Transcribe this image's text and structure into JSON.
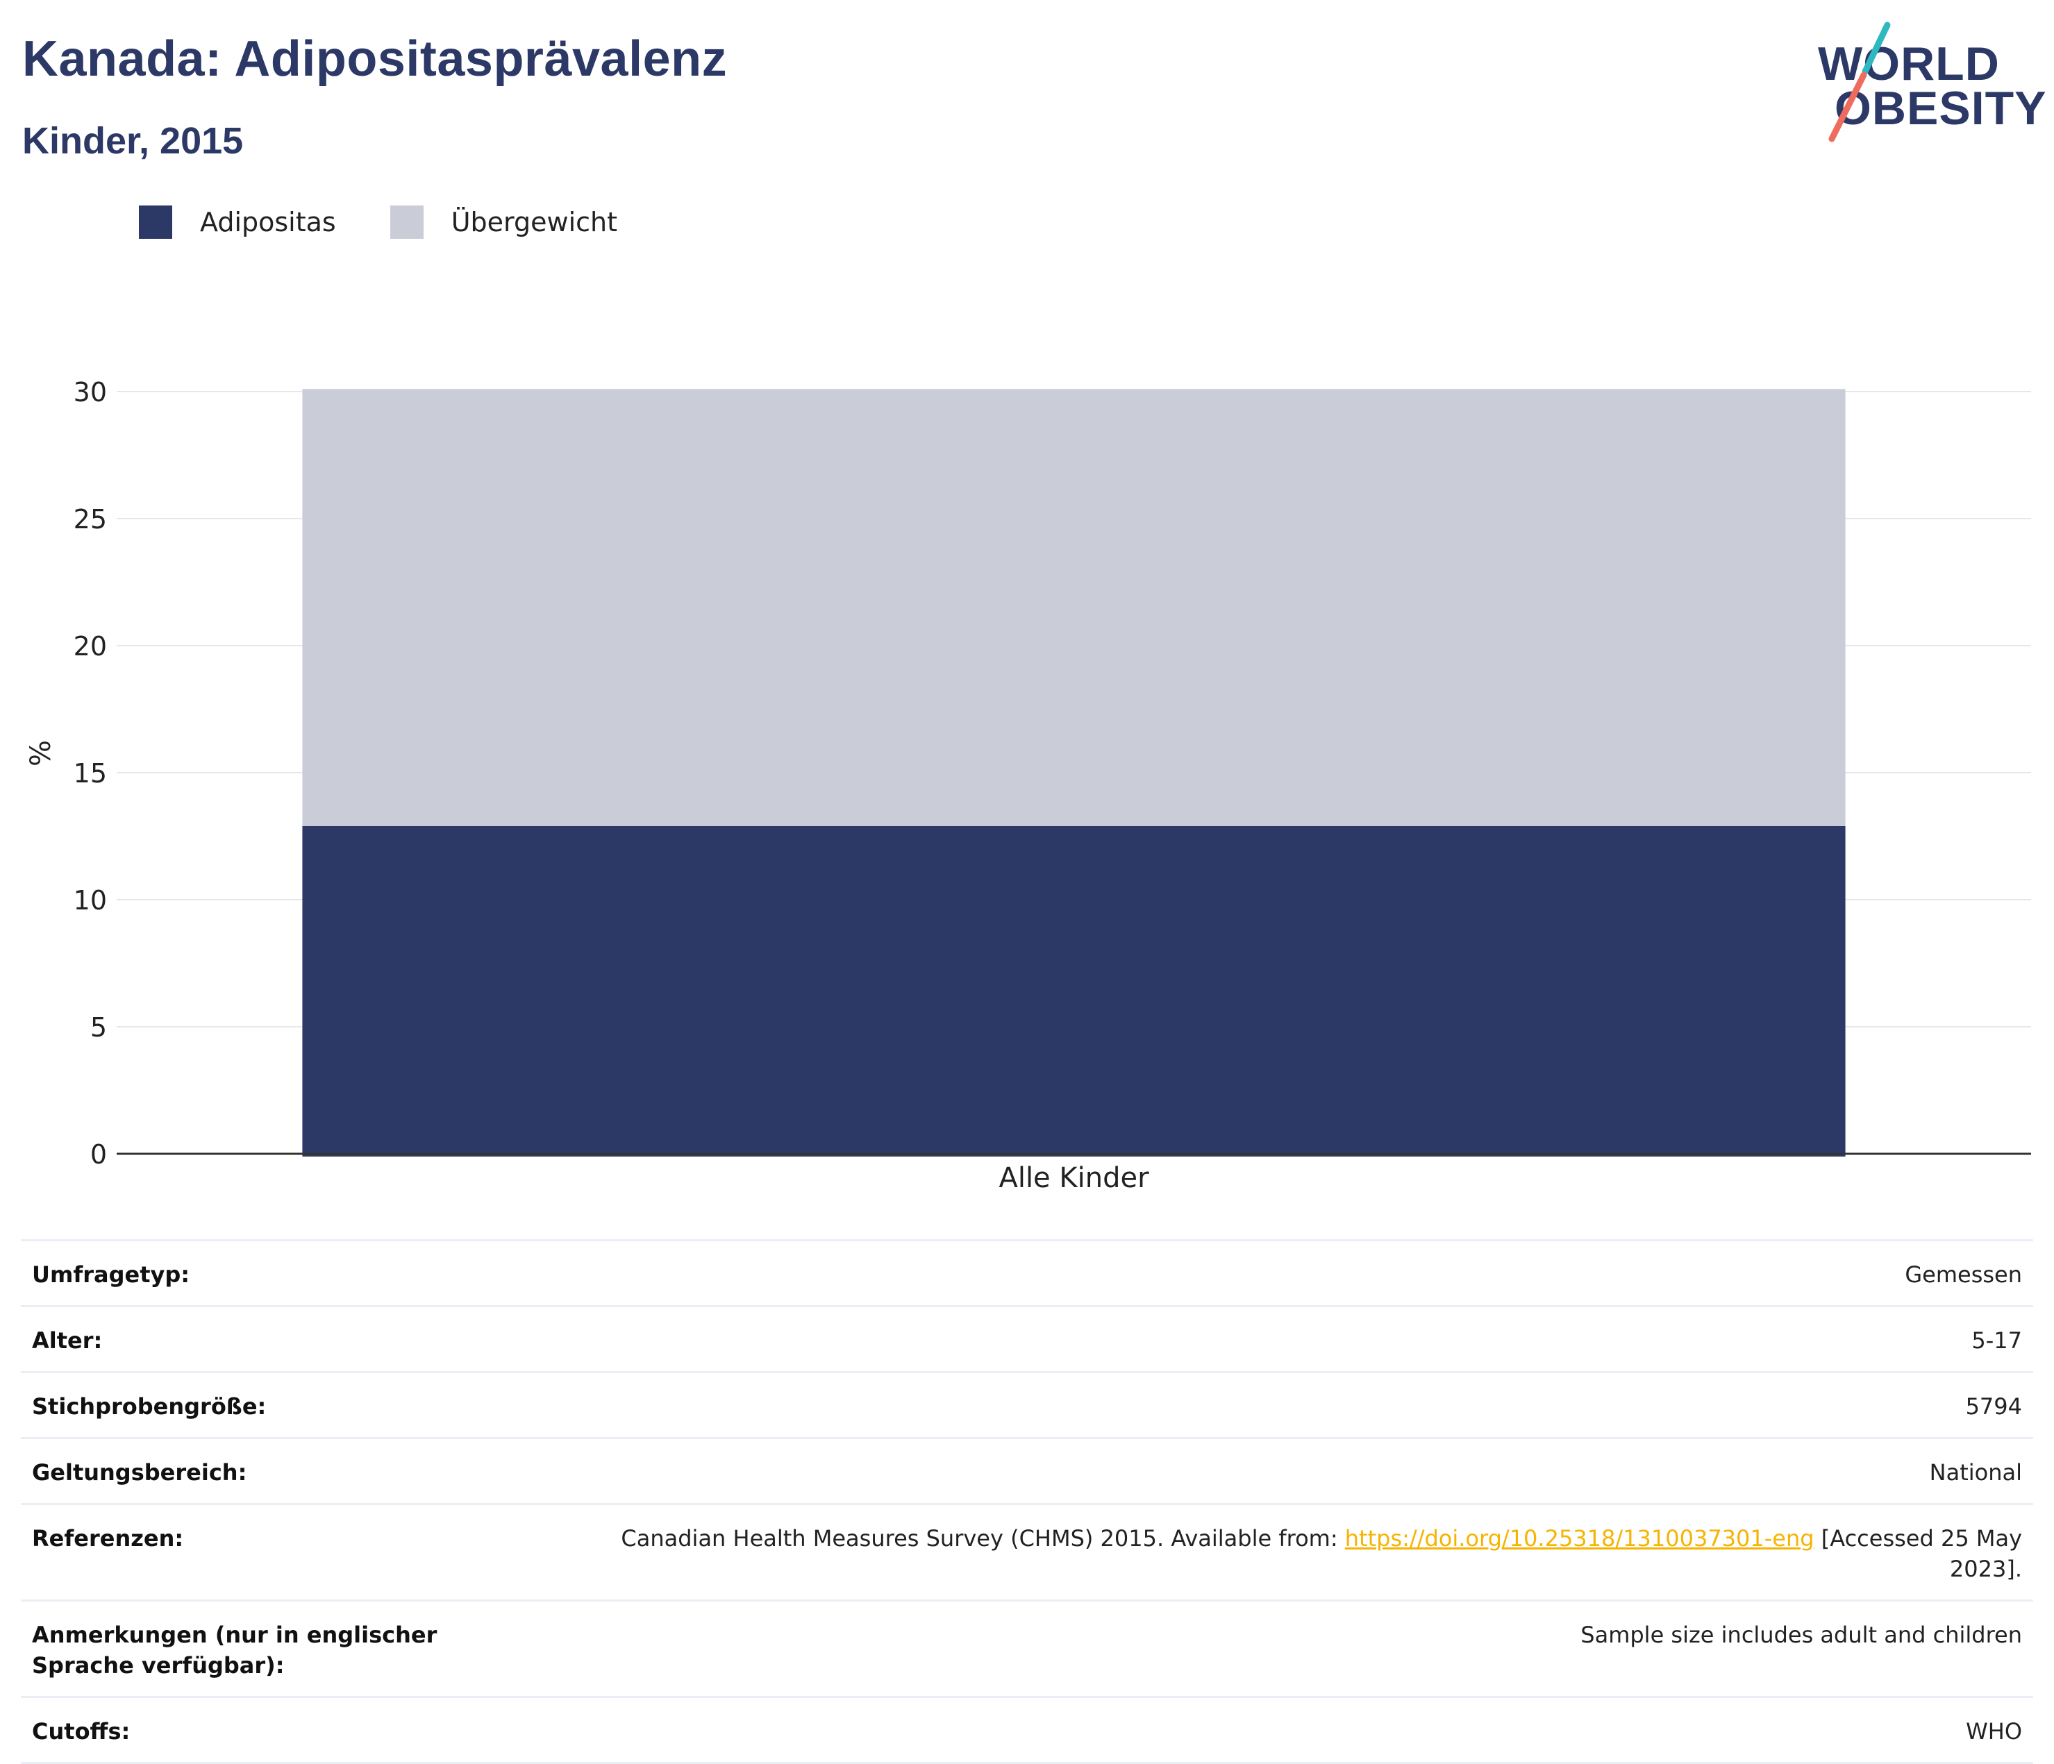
{
  "header": {
    "title": "Kanada: Adipositasprävalenz",
    "subtitle": "Kinder, 2015"
  },
  "logo": {
    "line1": "WORLD",
    "line2": "OBESITY",
    "accent_colors": [
      "#2fb8c0",
      "#ef6b5e"
    ]
  },
  "legend": {
    "items": [
      {
        "label": "Adipositas",
        "color": "#2c3866"
      },
      {
        "label": "Übergewicht",
        "color": "#cacdd8"
      }
    ]
  },
  "chart_data": {
    "type": "bar",
    "stacked": true,
    "categories": [
      "Alle Kinder"
    ],
    "series": [
      {
        "name": "Adipositas",
        "values": [
          12.9
        ],
        "color": "#2c3866"
      },
      {
        "name": "Übergewicht",
        "values": [
          17.2
        ],
        "color": "#cacdd8"
      }
    ],
    "ylabel": "%",
    "xlabel": "",
    "ylim": [
      0,
      30
    ],
    "yticks": [
      "0",
      "5",
      "10",
      "15",
      "20",
      "25",
      "30"
    ],
    "grid": true,
    "legend_position": "top-left"
  },
  "info": {
    "rows": [
      {
        "label": "Umfragetyp:",
        "value": "Gemessen"
      },
      {
        "label": "Alter:",
        "value": "5-17"
      },
      {
        "label": "Stichprobengröße:",
        "value": "5794"
      },
      {
        "label": "Geltungsbereich:",
        "value": "National"
      },
      {
        "label": "Referenzen:",
        "value_before": "Canadian Health Measures Survey (CHMS) 2015. Available from: ",
        "link": "https://doi.org/10.25318/1310037301-eng",
        "value_after": " [Accessed 25 May 2023]."
      },
      {
        "label": "Anmerkungen (nur in englischer Sprache verfügbar):",
        "value": "Sample size includes adult and children"
      },
      {
        "label": "Cutoffs:",
        "value": "WHO"
      }
    ]
  }
}
